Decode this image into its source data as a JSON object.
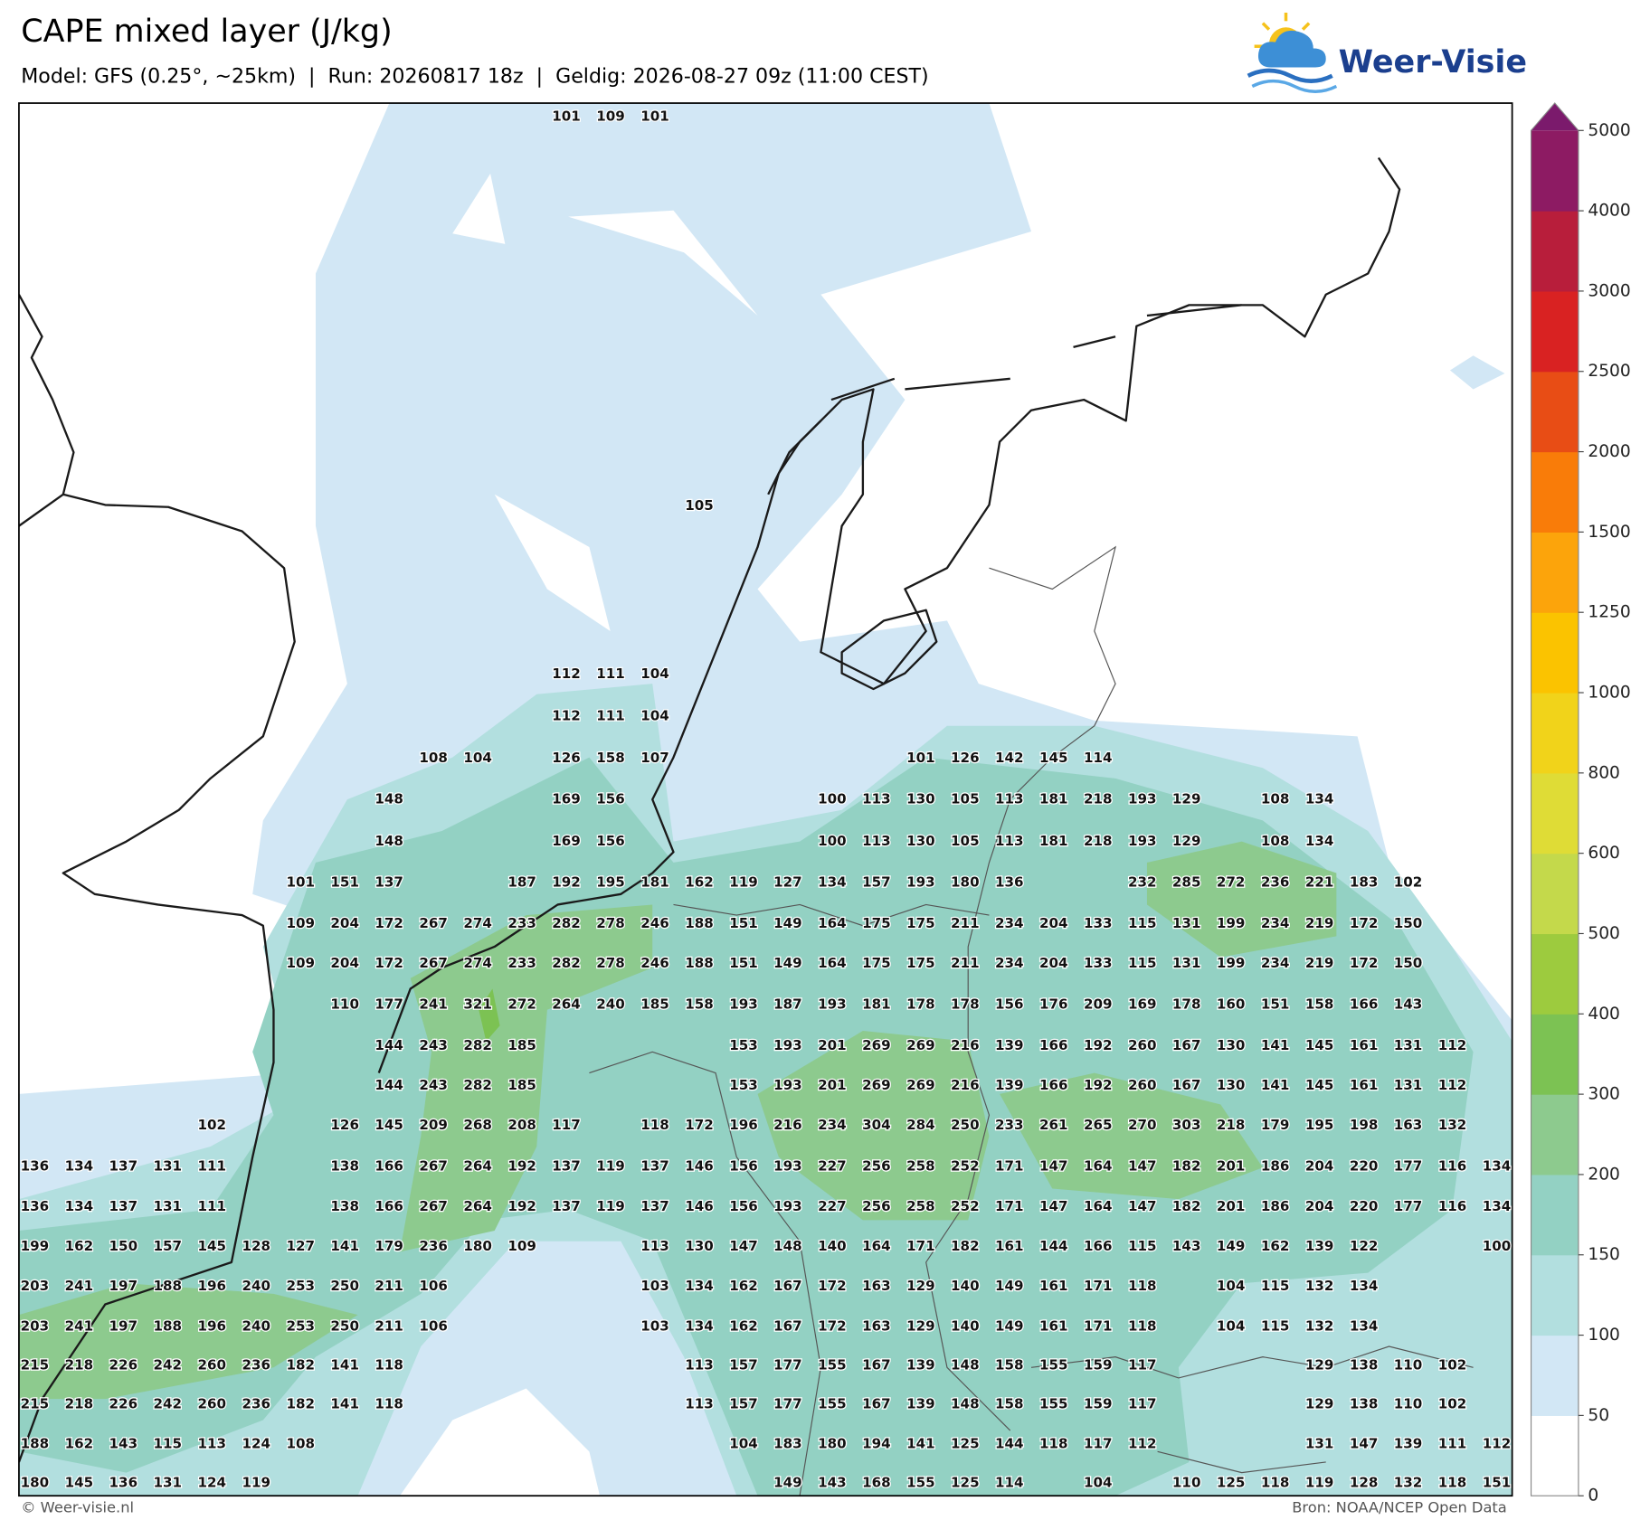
{
  "header": {
    "title": "CAPE mixed layer (J/kg)",
    "subtitle": "Model: GFS (0.25°, ~25km)  |  Run: 20260817 18z  |  Geldig: 2026-08-27 09z (11:00 CEST)",
    "logo": "Weer-Visie"
  },
  "map": {
    "grid": [
      [
        null,
        null,
        null,
        null,
        null,
        null,
        null,
        null,
        null,
        null,
        null,
        null,
        101,
        109,
        101,
        null,
        null,
        null,
        null,
        null,
        null,
        null,
        null,
        null,
        null,
        null,
        null,
        null,
        null,
        null,
        null,
        null,
        null,
        null
      ],
      [
        null,
        null,
        null,
        null,
        null,
        null,
        null,
        null,
        null,
        null,
        null,
        null,
        null,
        null,
        null,
        105,
        null,
        null,
        null,
        null,
        null,
        null,
        null,
        null,
        null,
        null,
        null,
        null,
        null,
        null,
        null,
        null,
        null,
        null
      ],
      [
        null,
        null,
        null,
        null,
        null,
        null,
        null,
        null,
        null,
        null,
        null,
        null,
        112,
        111,
        104,
        null,
        null,
        null,
        null,
        null,
        null,
        null,
        null,
        null,
        null,
        null,
        null,
        null,
        null,
        null,
        null,
        null,
        null,
        null
      ],
      [
        null,
        null,
        null,
        null,
        null,
        null,
        null,
        null,
        null,
        null,
        null,
        null,
        112,
        111,
        104,
        null,
        null,
        null,
        null,
        null,
        null,
        null,
        null,
        null,
        null,
        null,
        null,
        null,
        null,
        null,
        null,
        null,
        null,
        null
      ],
      [
        null,
        null,
        null,
        null,
        null,
        null,
        null,
        null,
        null,
        108,
        104,
        null,
        126,
        158,
        107,
        null,
        null,
        null,
        null,
        null,
        101,
        126,
        142,
        145,
        114,
        null,
        null,
        null,
        null,
        null,
        null,
        null,
        null,
        null
      ],
      [
        null,
        null,
        null,
        null,
        null,
        null,
        null,
        null,
        148,
        null,
        null,
        null,
        169,
        156,
        null,
        null,
        null,
        null,
        100,
        113,
        130,
        105,
        113,
        181,
        218,
        193,
        129,
        null,
        108,
        134,
        null,
        null,
        null,
        null
      ],
      [
        null,
        null,
        null,
        null,
        null,
        null,
        null,
        null,
        148,
        null,
        null,
        null,
        169,
        156,
        null,
        null,
        null,
        null,
        100,
        113,
        130,
        105,
        113,
        181,
        218,
        193,
        129,
        null,
        108,
        134,
        null,
        null,
        null,
        null
      ],
      [
        null,
        null,
        null,
        null,
        null,
        null,
        101,
        151,
        137,
        null,
        null,
        187,
        192,
        195,
        181,
        162,
        119,
        127,
        134,
        157,
        193,
        180,
        136,
        null,
        null,
        232,
        285,
        272,
        236,
        221,
        183,
        102,
        null,
        null
      ],
      [
        null,
        null,
        null,
        null,
        null,
        null,
        109,
        204,
        172,
        267,
        274,
        233,
        282,
        278,
        246,
        188,
        151,
        149,
        164,
        175,
        175,
        211,
        234,
        204,
        133,
        115,
        131,
        199,
        234,
        219,
        172,
        150,
        null,
        null
      ],
      [
        null,
        null,
        null,
        null,
        null,
        null,
        109,
        204,
        172,
        267,
        274,
        233,
        282,
        278,
        246,
        188,
        151,
        149,
        164,
        175,
        175,
        211,
        234,
        204,
        133,
        115,
        131,
        199,
        234,
        219,
        172,
        150,
        null,
        null
      ],
      [
        null,
        null,
        null,
        null,
        null,
        null,
        null,
        110,
        177,
        241,
        321,
        272,
        264,
        240,
        185,
        158,
        193,
        187,
        193,
        181,
        178,
        178,
        156,
        176,
        209,
        169,
        178,
        160,
        151,
        158,
        166,
        143,
        null,
        null
      ],
      [
        null,
        null,
        null,
        null,
        null,
        null,
        null,
        null,
        144,
        243,
        282,
        185,
        null,
        null,
        null,
        null,
        153,
        193,
        201,
        269,
        269,
        216,
        139,
        166,
        192,
        260,
        167,
        130,
        141,
        145,
        161,
        131,
        112,
        null
      ],
      [
        null,
        null,
        null,
        null,
        null,
        null,
        null,
        null,
        144,
        243,
        282,
        185,
        null,
        null,
        null,
        null,
        153,
        193,
        201,
        269,
        269,
        216,
        139,
        166,
        192,
        260,
        167,
        130,
        141,
        145,
        161,
        131,
        112,
        null
      ],
      [
        null,
        null,
        null,
        null,
        102,
        null,
        null,
        126,
        145,
        209,
        268,
        208,
        117,
        null,
        118,
        172,
        196,
        216,
        234,
        304,
        284,
        250,
        233,
        261,
        265,
        270,
        303,
        218,
        179,
        195,
        198,
        163,
        132,
        null
      ],
      [
        136,
        134,
        137,
        131,
        111,
        null,
        null,
        138,
        166,
        267,
        264,
        192,
        137,
        119,
        137,
        146,
        156,
        193,
        227,
        256,
        258,
        252,
        171,
        147,
        164,
        147,
        182,
        201,
        186,
        204,
        220,
        177,
        116,
        134
      ],
      [
        136,
        134,
        137,
        131,
        111,
        null,
        null,
        138,
        166,
        267,
        264,
        192,
        137,
        119,
        137,
        146,
        156,
        193,
        227,
        256,
        258,
        252,
        171,
        147,
        164,
        147,
        182,
        201,
        186,
        204,
        220,
        177,
        116,
        134
      ],
      [
        199,
        162,
        150,
        157,
        145,
        128,
        127,
        141,
        179,
        236,
        180,
        109,
        null,
        null,
        113,
        130,
        147,
        148,
        140,
        164,
        171,
        182,
        161,
        144,
        166,
        115,
        143,
        149,
        162,
        139,
        122,
        null,
        null,
        100
      ],
      [
        203,
        241,
        197,
        188,
        196,
        240,
        253,
        250,
        211,
        106,
        null,
        null,
        null,
        null,
        103,
        134,
        162,
        167,
        172,
        163,
        129,
        140,
        149,
        161,
        171,
        118,
        null,
        104,
        115,
        132,
        134,
        null,
        null,
        null
      ],
      [
        203,
        241,
        197,
        188,
        196,
        240,
        253,
        250,
        211,
        106,
        null,
        null,
        null,
        null,
        103,
        134,
        162,
        167,
        172,
        163,
        129,
        140,
        149,
        161,
        171,
        118,
        null,
        104,
        115,
        132,
        134,
        null,
        null,
        null
      ],
      [
        215,
        218,
        226,
        242,
        260,
        236,
        182,
        141,
        118,
        null,
        null,
        null,
        null,
        null,
        null,
        113,
        157,
        177,
        155,
        167,
        139,
        148,
        158,
        155,
        159,
        117,
        null,
        null,
        null,
        129,
        138,
        110,
        102,
        null
      ],
      [
        215,
        218,
        226,
        242,
        260,
        236,
        182,
        141,
        118,
        null,
        null,
        null,
        null,
        null,
        null,
        113,
        157,
        177,
        155,
        167,
        139,
        148,
        158,
        155,
        159,
        117,
        null,
        null,
        null,
        129,
        138,
        110,
        102,
        null
      ],
      [
        188,
        162,
        143,
        115,
        113,
        124,
        108,
        null,
        null,
        null,
        null,
        null,
        null,
        null,
        null,
        null,
        104,
        183,
        180,
        194,
        141,
        125,
        144,
        118,
        117,
        112,
        null,
        null,
        null,
        131,
        147,
        139,
        111,
        112
      ],
      [
        180,
        145,
        136,
        131,
        124,
        119,
        null,
        null,
        null,
        null,
        null,
        null,
        null,
        null,
        null,
        null,
        null,
        149,
        143,
        168,
        155,
        125,
        114,
        null,
        104,
        null,
        110,
        125,
        118,
        119,
        128,
        132,
        118,
        151
      ]
    ]
  },
  "colorbar": {
    "ticks": [
      0,
      50,
      100,
      150,
      200,
      300,
      400,
      500,
      600,
      800,
      1000,
      1250,
      1500,
      2000,
      2500,
      3000,
      4000,
      5000
    ],
    "colors": [
      "#ffffff",
      "#d2e7f5",
      "#b2dfdf",
      "#93d1c3",
      "#8dca8e",
      "#7cc253",
      "#9dcb3e",
      "#c4d94b",
      "#dfdc36",
      "#f1d31a",
      "#fbc300",
      "#fca40b",
      "#f97c09",
      "#e84d15",
      "#d92222",
      "#b81e3b",
      "#8d1b63"
    ],
    "extend_color": "#7b1a6c"
  },
  "footer": {
    "left": "© Weer-visie.nl",
    "right": "Bron: NOAA/NCEP Open Data"
  }
}
